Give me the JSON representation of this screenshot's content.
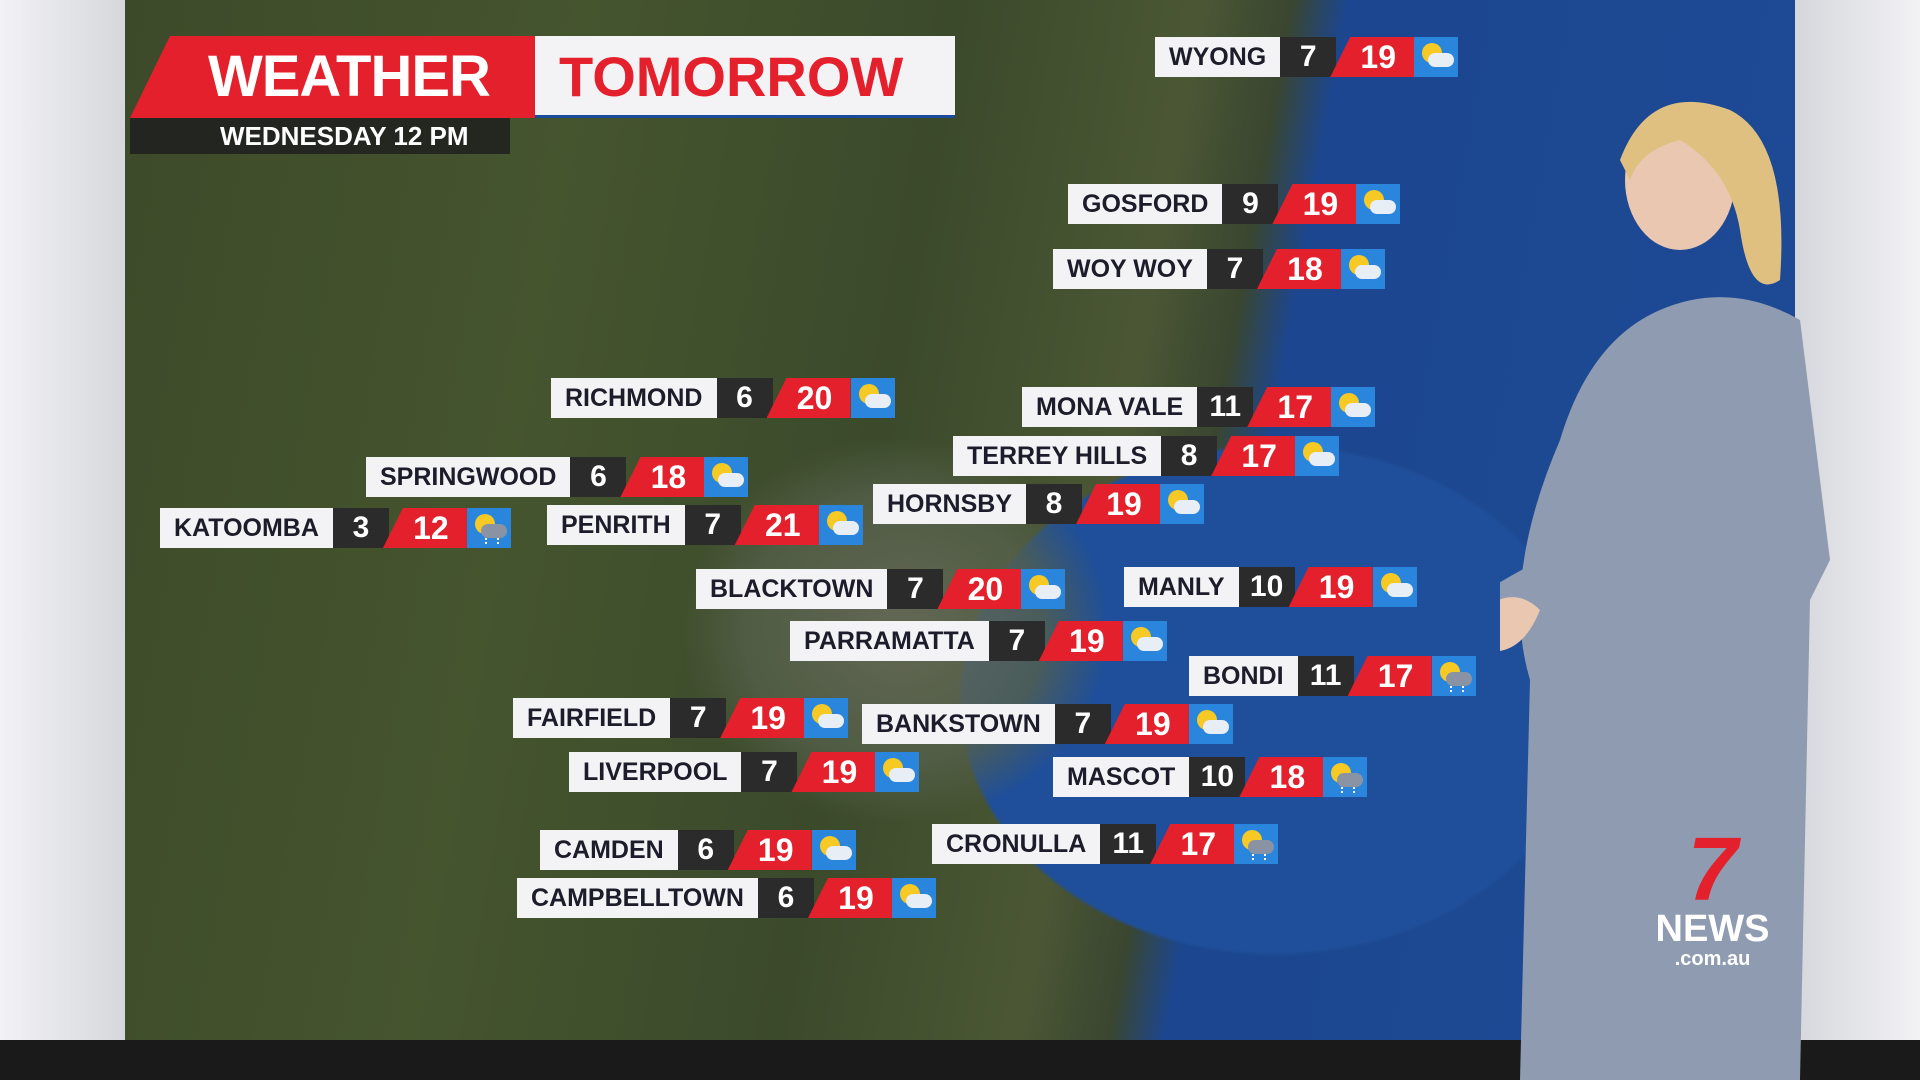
{
  "header": {
    "title_a": "WEATHER",
    "title_b": "TOMORROW",
    "subtitle": "WEDNESDAY 12 PM"
  },
  "colors": {
    "max_bg": "#e3202b",
    "min_bg": "#2b2b2b",
    "icon_bg": "#2a86dc"
  },
  "locations": [
    {
      "name": "WYONG",
      "min": "7",
      "max": "19",
      "icon": "partly-cloudy-icon"
    },
    {
      "name": "GOSFORD",
      "min": "9",
      "max": "19",
      "icon": "partly-cloudy-icon"
    },
    {
      "name": "WOY WOY",
      "min": "7",
      "max": "18",
      "icon": "partly-cloudy-icon"
    },
    {
      "name": "RICHMOND",
      "min": "6",
      "max": "20",
      "icon": "partly-cloudy-icon"
    },
    {
      "name": "MONA VALE",
      "min": "11",
      "max": "17",
      "icon": "partly-cloudy-icon"
    },
    {
      "name": "TERREY HILLS",
      "min": "8",
      "max": "17",
      "icon": "partly-cloudy-icon"
    },
    {
      "name": "SPRINGWOOD",
      "min": "6",
      "max": "18",
      "icon": "partly-cloudy-icon"
    },
    {
      "name": "HORNSBY",
      "min": "8",
      "max": "19",
      "icon": "partly-cloudy-icon"
    },
    {
      "name": "KATOOMBA",
      "min": "3",
      "max": "12",
      "icon": "showers-icon"
    },
    {
      "name": "PENRITH",
      "min": "7",
      "max": "21",
      "icon": "partly-cloudy-icon"
    },
    {
      "name": "BLACKTOWN",
      "min": "7",
      "max": "20",
      "icon": "partly-cloudy-icon"
    },
    {
      "name": "MANLY",
      "min": "10",
      "max": "19",
      "icon": "partly-cloudy-icon"
    },
    {
      "name": "PARRAMATTA",
      "min": "7",
      "max": "19",
      "icon": "partly-cloudy-icon"
    },
    {
      "name": "BONDI",
      "min": "11",
      "max": "17",
      "icon": "showers-icon"
    },
    {
      "name": "FAIRFIELD",
      "min": "7",
      "max": "19",
      "icon": "partly-cloudy-icon"
    },
    {
      "name": "BANKSTOWN",
      "min": "7",
      "max": "19",
      "icon": "partly-cloudy-icon"
    },
    {
      "name": "LIVERPOOL",
      "min": "7",
      "max": "19",
      "icon": "partly-cloudy-icon"
    },
    {
      "name": "MASCOT",
      "min": "10",
      "max": "18",
      "icon": "showers-icon"
    },
    {
      "name": "CAMDEN",
      "min": "6",
      "max": "19",
      "icon": "partly-cloudy-icon"
    },
    {
      "name": "CRONULLA",
      "min": "11",
      "max": "17",
      "icon": "showers-icon"
    },
    {
      "name": "CAMPBELLTOWN",
      "min": "6",
      "max": "19",
      "icon": "partly-cloudy-icon"
    }
  ],
  "logo": {
    "mark": "7",
    "text": "NEWS",
    "domain": ".com.au"
  }
}
